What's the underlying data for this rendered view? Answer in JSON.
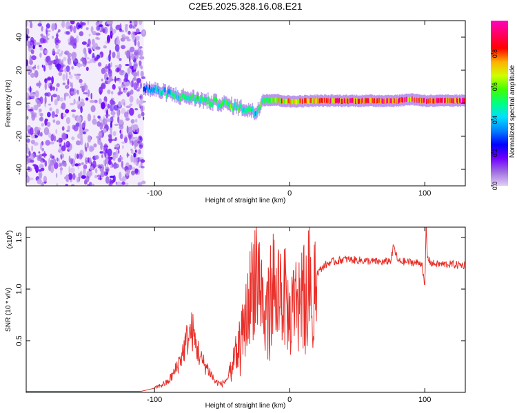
{
  "chart_data": [
    {
      "type": "heatmap",
      "title": "C2E5.2025.328.16.08.E21",
      "xlabel": "Height of straight line (km)",
      "ylabel": "Frequency (Hz)",
      "xlim": [
        -195,
        130
      ],
      "ylim": [
        -50,
        50
      ],
      "xticks": [
        -100,
        0,
        100
      ],
      "yticks": [
        -40,
        -20,
        0,
        20,
        40
      ],
      "colorbar": {
        "label": "Normalized spectral amplitude",
        "range": [
          0.0,
          1.0
        ],
        "ticks": [
          "0.0",
          "0.2",
          "0.4",
          "0.6",
          "0.8"
        ],
        "colors": [
          "#e2cff6",
          "#a070e0",
          "#7000ff",
          "#0000ff",
          "#0080ff",
          "#00e0ff",
          "#00ff80",
          "#40ff00",
          "#d0ff00",
          "#ffb000",
          "#ff0000",
          "#ff0060",
          "#ff00c0"
        ]
      },
      "noise_region_x": [
        -195,
        -108
      ],
      "ridge": {
        "x": [
          -108,
          -100,
          -90,
          -80,
          -70,
          -60,
          -50,
          -40,
          -30,
          -25,
          -20,
          -10,
          0,
          20,
          40,
          60,
          80,
          90,
          100,
          110,
          120,
          130
        ],
        "freq": [
          9,
          8,
          6,
          4,
          3,
          1,
          0,
          -2,
          -4,
          -6,
          2,
          2,
          1,
          1.5,
          1.5,
          1.5,
          1.5,
          2.5,
          1.5,
          1.5,
          1.5,
          1.5
        ],
        "amplitude": [
          0.3,
          0.4,
          0.45,
          0.5,
          0.5,
          0.5,
          0.55,
          0.55,
          0.5,
          0.45,
          0.6,
          0.7,
          0.75,
          0.85,
          0.85,
          0.9,
          0.9,
          0.85,
          0.9,
          0.9,
          0.9,
          0.9
        ]
      }
    },
    {
      "type": "line",
      "title": "",
      "xlabel": "Height of straight line (km)",
      "ylabel": "SNR (10 * v/v)",
      "multiplier": "(x10",
      "multiplier_exp": "4",
      "multiplier_close": ")",
      "xlim": [
        -195,
        130
      ],
      "ylim": [
        0,
        1.6
      ],
      "xticks": [
        -100,
        0,
        100
      ],
      "yticks": [
        0.5,
        1.0,
        1.5
      ],
      "color": "#e8302a",
      "series": [
        {
          "name": "SNR",
          "x": [
            -195,
            -110,
            -100,
            -90,
            -85,
            -80,
            -75,
            -72,
            -70,
            -65,
            -60,
            -55,
            -50,
            -45,
            -40,
            -35,
            -30,
            -28,
            -25,
            -23,
            -20,
            -18,
            -15,
            -12,
            -10,
            -8,
            -5,
            -3,
            0,
            5,
            10,
            15,
            20,
            25,
            30,
            35,
            40,
            50,
            60,
            70,
            75,
            77,
            80,
            90,
            98,
            100,
            101,
            102,
            105,
            110,
            120,
            130
          ],
          "y": [
            0.01,
            0.01,
            0.04,
            0.1,
            0.2,
            0.35,
            0.55,
            0.6,
            0.48,
            0.3,
            0.22,
            0.1,
            0.08,
            0.15,
            0.35,
            0.55,
            0.85,
            1.05,
            1.25,
            1.1,
            0.9,
            0.7,
            0.9,
            1.1,
            0.85,
            1.05,
            0.95,
            0.9,
            0.7,
            0.9,
            0.98,
            1.05,
            1.15,
            1.22,
            1.26,
            1.27,
            1.29,
            1.28,
            1.27,
            1.26,
            1.28,
            1.42,
            1.27,
            1.26,
            1.25,
            1.0,
            1.6,
            1.3,
            1.25,
            1.24,
            1.24,
            1.23
          ]
        }
      ]
    }
  ]
}
